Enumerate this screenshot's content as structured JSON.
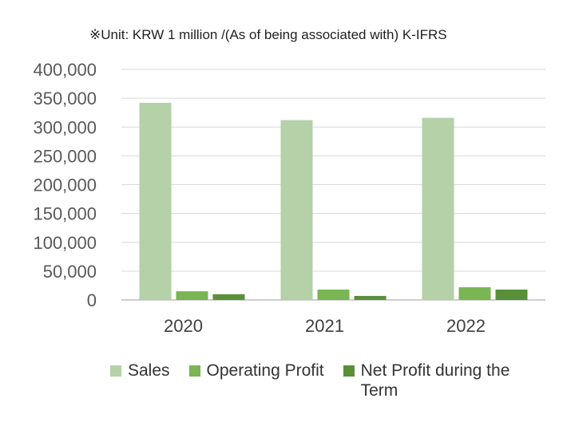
{
  "unit_note": "※Unit: KRW 1 million /(As of being associated with) K-IFRS",
  "chart_data": {
    "type": "bar",
    "title": "",
    "xlabel": "",
    "ylabel": "",
    "categories": [
      "2020",
      "2021",
      "2022"
    ],
    "ylim": [
      0,
      400000
    ],
    "yticks": [
      0,
      50000,
      100000,
      150000,
      200000,
      250000,
      300000,
      350000,
      400000
    ],
    "ytick_labels": [
      "0",
      "50,000",
      "100,000",
      "150,000",
      "200,000",
      "250,000",
      "300,000",
      "350,000",
      "400,000"
    ],
    "grid": true,
    "legend_position": "bottom",
    "series": [
      {
        "name": "Sales",
        "color": "#b4d1a7",
        "values": [
          342000,
          312000,
          316000
        ]
      },
      {
        "name": "Operating Profit",
        "color": "#79b553",
        "values": [
          15000,
          18000,
          22000
        ]
      },
      {
        "name": "Net Profit during the Term",
        "color": "#5a8f3a",
        "values": [
          10000,
          7000,
          18000
        ]
      }
    ]
  }
}
